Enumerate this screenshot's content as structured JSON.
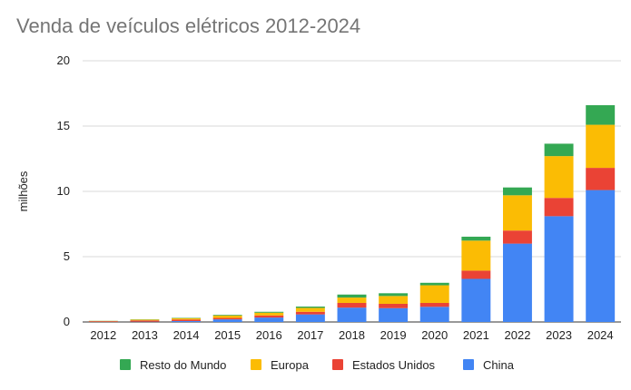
{
  "chart_data": {
    "type": "bar",
    "stacked": true,
    "title": "Venda de veículos elétricos 2012-2024",
    "xlabel": "",
    "ylabel": "milhões",
    "ylim": [
      0,
      20
    ],
    "yticks": [
      0,
      5,
      10,
      15,
      20
    ],
    "grid": true,
    "legend_position": "bottom",
    "categories": [
      "2012",
      "2013",
      "2014",
      "2015",
      "2016",
      "2017",
      "2018",
      "2019",
      "2020",
      "2021",
      "2022",
      "2023",
      "2024"
    ],
    "series": [
      {
        "name": "China",
        "color": "#4285f4",
        "values": [
          0.01,
          0.02,
          0.07,
          0.2,
          0.34,
          0.58,
          1.1,
          1.06,
          1.16,
          3.3,
          6.0,
          8.1,
          10.1
        ]
      },
      {
        "name": "Estados Unidos",
        "color": "#ea4335",
        "values": [
          0.05,
          0.1,
          0.12,
          0.11,
          0.16,
          0.2,
          0.36,
          0.33,
          0.3,
          0.63,
          1.0,
          1.4,
          1.7
        ]
      },
      {
        "name": "Europa",
        "color": "#fbbc04",
        "values": [
          0.02,
          0.06,
          0.1,
          0.19,
          0.21,
          0.3,
          0.41,
          0.6,
          1.35,
          2.3,
          2.7,
          3.2,
          3.3
        ]
      },
      {
        "name": "Resto do Mundo",
        "color": "#34a853",
        "values": [
          0.01,
          0.02,
          0.03,
          0.05,
          0.07,
          0.1,
          0.23,
          0.21,
          0.19,
          0.3,
          0.6,
          0.95,
          1.5
        ]
      }
    ],
    "legend_order": [
      "Resto do Mundo",
      "Europa",
      "Estados Unidos",
      "China"
    ]
  }
}
